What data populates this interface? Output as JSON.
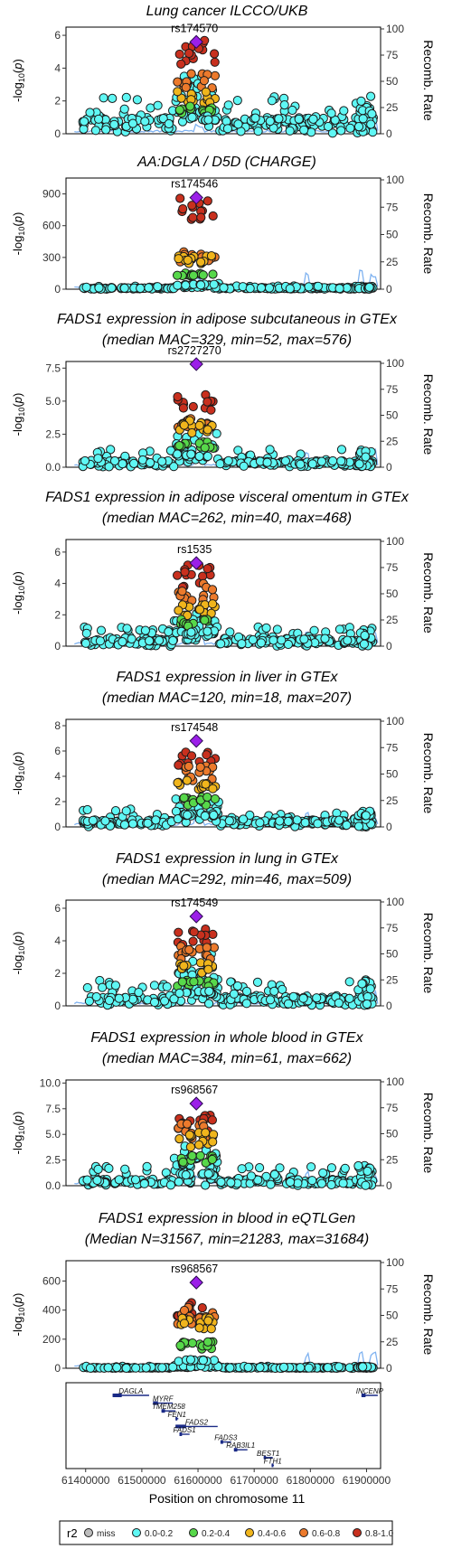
{
  "colors": {
    "miss": "#bdbdbd",
    "r2_0_0.2": "#5ff7f4",
    "r2_0.2_0.4": "#57d84a",
    "r2_0.4_0.6": "#f0b51c",
    "r2_0.6_0.8": "#ec7a2c",
    "r2_0.8_1.0": "#c8301e",
    "lead": "#9b1fe8",
    "recomb_line": "#7fb2f0",
    "gene": "#1a2a86"
  },
  "chart_data": [
    {
      "type": "scatter",
      "title_lines": [
        "Lung cancer ILCCO/UKB"
      ],
      "lead_label": "rs174570",
      "ylim": [
        0,
        6.5
      ],
      "yticks": [
        "0",
        "2",
        "4",
        "6"
      ],
      "lead_y": 5.6,
      "y2label": "Recomb. Rate",
      "y2ticks": [
        "0",
        "25",
        "50",
        "75",
        "100"
      ],
      "r2_ramp": [
        5.3,
        3.5,
        2.4,
        1.6,
        1.0
      ],
      "background": 0.7,
      "spread": 1.6
    },
    {
      "type": "scatter",
      "title_lines": [
        "AA:DGLA / D5D (CHARGE)"
      ],
      "lead_label": "rs174546",
      "ylim": [
        0,
        1050
      ],
      "yticks": [
        "0",
        "300",
        "600",
        "900"
      ],
      "lead_y": 865,
      "y2label": "Recomb. Rate",
      "y2ticks": [
        "0",
        "25",
        "50",
        "75",
        "100"
      ],
      "r2_ramp": [
        830,
        330,
        300,
        150,
        45
      ],
      "background": 10,
      "spread": 20
    },
    {
      "type": "scatter",
      "title_lines": [
        "FADS1 expression in adipose subcutaneous in GTEx",
        "(median MAC=329, min=52, max=576)"
      ],
      "lead_label": "rs2727270",
      "ylim": [
        0,
        8
      ],
      "yticks": [
        "0.0",
        "2.5",
        "5.0",
        "7.5"
      ],
      "lead_y": 7.8,
      "y2label": "Recomb. Rate",
      "y2ticks": [
        "0",
        "25",
        "50",
        "75",
        "100"
      ],
      "r2_ramp": [
        5.2,
        3.5,
        3.3,
        1.8,
        1.0
      ],
      "background": 0.35,
      "spread": 1.0
    },
    {
      "type": "scatter",
      "title_lines": [
        "FADS1 expression in adipose visceral omentum in GTEx",
        "(median MAC=262, min=40, max=468)"
      ],
      "lead_label": "rs1535",
      "ylim": [
        0,
        6.8
      ],
      "yticks": [
        "0",
        "2",
        "4",
        "6"
      ],
      "lead_y": 5.3,
      "y2label": "Recomb. Rate",
      "y2ticks": [
        "0",
        "25",
        "50",
        "75",
        "100"
      ],
      "r2_ramp": [
        4.8,
        3.7,
        2.5,
        1.6,
        0.9
      ],
      "background": 0.35,
      "spread": 0.9
    },
    {
      "type": "scatter",
      "title_lines": [
        "FADS1 expression in liver in GTEx",
        "(median MAC=120, min=18, max=207)"
      ],
      "lead_label": "rs174548",
      "ylim": [
        0,
        8.5
      ],
      "yticks": [
        "0",
        "2",
        "4",
        "6",
        "8"
      ],
      "lead_y": 6.8,
      "y2label": "Recomb. Rate",
      "y2ticks": [
        "0",
        "25",
        "50",
        "75",
        "100"
      ],
      "r2_ramp": [
        6.0,
        4.5,
        3.5,
        2.2,
        1.0
      ],
      "background": 0.4,
      "spread": 1.0
    },
    {
      "type": "scatter",
      "title_lines": [
        "FADS1 expression in lung in GTEx",
        "(median MAC=292, min=46, max=509)"
      ],
      "lead_label": "rs174549",
      "ylim": [
        0,
        6.5
      ],
      "yticks": [
        "0",
        "2",
        "4",
        "6"
      ],
      "lead_y": 5.5,
      "y2label": "Recomb. Rate",
      "y2ticks": [
        "0",
        "25",
        "50",
        "75",
        "100"
      ],
      "r2_ramp": [
        4.4,
        3.5,
        2.6,
        1.5,
        0.9
      ],
      "background": 0.4,
      "spread": 1.2
    },
    {
      "type": "scatter",
      "title_lines": [
        "FADS1 expression in whole blood in GTEx",
        "(median MAC=384, min=61, max=662)"
      ],
      "lead_label": "rs968567",
      "ylim": [
        0,
        10.3
      ],
      "yticks": [
        "0.0",
        "2.5",
        "5.0",
        "7.5",
        "10.0"
      ],
      "lead_y": 8.0,
      "y2label": "Recomb. Rate",
      "y2ticks": [
        "0",
        "25",
        "50",
        "75",
        "100"
      ],
      "r2_ramp": [
        6.8,
        5.8,
        4.8,
        2.8,
        1.2
      ],
      "background": 0.45,
      "spread": 1.5
    },
    {
      "type": "scatter",
      "title_lines": [
        "FADS1 expression in blood in eQTLGen",
        "(Median N=31567, min=21283, max=31684)"
      ],
      "lead_label": "rs968567",
      "ylim": [
        0,
        740
      ],
      "yticks": [
        "0",
        "200",
        "400",
        "600"
      ],
      "lead_y": 590,
      "y2label": "Recomb. Rate",
      "y2ticks": [
        "0",
        "25",
        "50",
        "75",
        "100"
      ],
      "r2_ramp": [
        420,
        390,
        330,
        170,
        60
      ],
      "background": 4,
      "spread": 10
    }
  ],
  "genes": [
    {
      "name": "DAGLA",
      "start": 61448000,
      "end": 61513000,
      "row": 0
    },
    {
      "name": "INCENP",
      "start": 61891000,
      "end": 61920000,
      "row": 0
    },
    {
      "name": "MYRF",
      "start": 61520000,
      "end": 61555000,
      "row": 1
    },
    {
      "name": "TMEM258",
      "start": 61535000,
      "end": 61560000,
      "row": 2
    },
    {
      "name": "FEN1",
      "start": 61560000,
      "end": 61565000,
      "row": 3
    },
    {
      "name": "FADS2",
      "start": 61560000,
      "end": 61635000,
      "row": 4
    },
    {
      "name": "FADS1",
      "start": 61567000,
      "end": 61585000,
      "row": 5
    },
    {
      "name": "FADS3",
      "start": 61640000,
      "end": 61659000,
      "row": 6
    },
    {
      "name": "RAB3IL1",
      "start": 61664000,
      "end": 61688000,
      "row": 7
    },
    {
      "name": "BEST1",
      "start": 61717000,
      "end": 61733000,
      "row": 8
    },
    {
      "name": "FTH1",
      "start": 61731000,
      "end": 61735000,
      "row": 9
    }
  ],
  "x_axis": {
    "label": "Position on chromosome 11",
    "ticks": [
      "61400000",
      "61500000",
      "61600000",
      "61700000",
      "61800000",
      "61900000"
    ],
    "tick_values": [
      61400000,
      61500000,
      61600000,
      61700000,
      61800000,
      61900000
    ],
    "range": [
      61365000,
      61925000
    ]
  },
  "lead_position": 61597000,
  "legend": {
    "title": "r2",
    "entries": [
      "miss",
      "0.0-0.2",
      "0.2-0.4",
      "0.4-0.6",
      "0.6-0.8",
      "0.8-1.0"
    ]
  }
}
